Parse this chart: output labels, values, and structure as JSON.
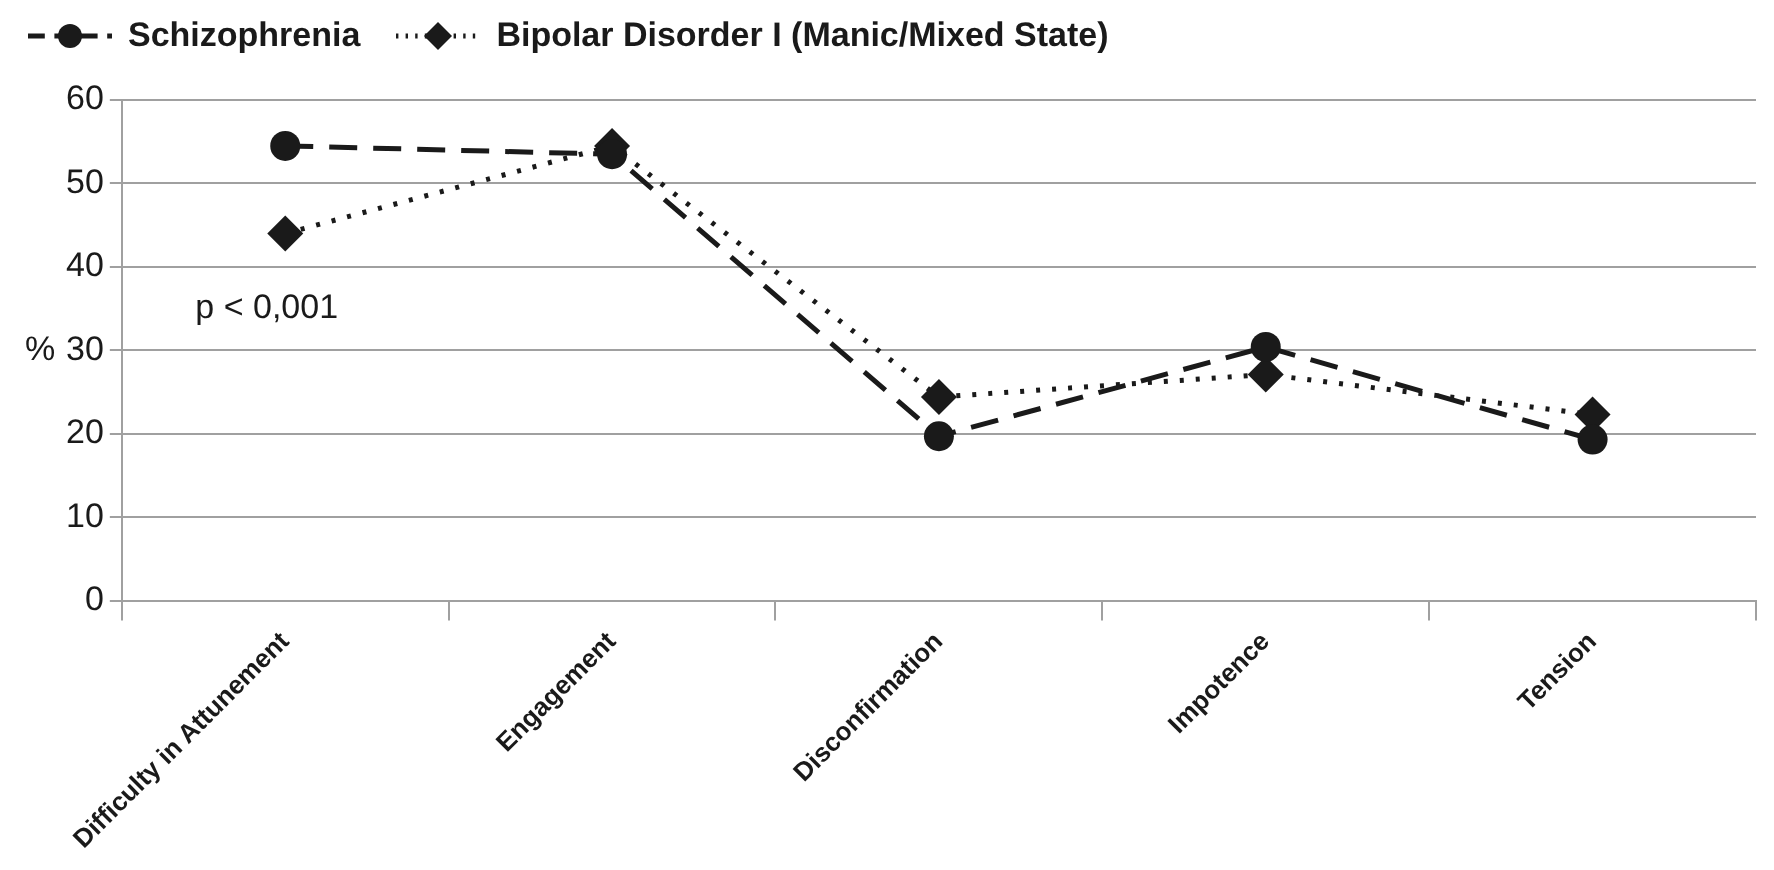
{
  "chart_data": {
    "type": "line",
    "ylabel": "%",
    "categories": [
      "Difficulty in Attunement",
      "Engagement",
      "Disconfirmation",
      "Impotence",
      "Tension"
    ],
    "series": [
      {
        "name": "Schizophrenia",
        "color": "#1a1a1a",
        "values": [
          54.5,
          53.5,
          19.7,
          30.4,
          19.3
        ],
        "marker": "circle",
        "line_style": "dashed"
      },
      {
        "name": "Bipolar Disorder I (Manic/Mixed State)",
        "color": "#1a1a1a",
        "values": [
          44,
          54.5,
          24.4,
          27.1,
          22.3
        ],
        "marker": "diamond",
        "line_style": "dotted"
      }
    ],
    "ylim": [
      0,
      60
    ],
    "yticks": [
      0,
      10,
      20,
      30,
      40,
      50,
      60
    ],
    "grid": "y",
    "legend": "top left",
    "annotations": [
      "p < 0,001"
    ]
  }
}
